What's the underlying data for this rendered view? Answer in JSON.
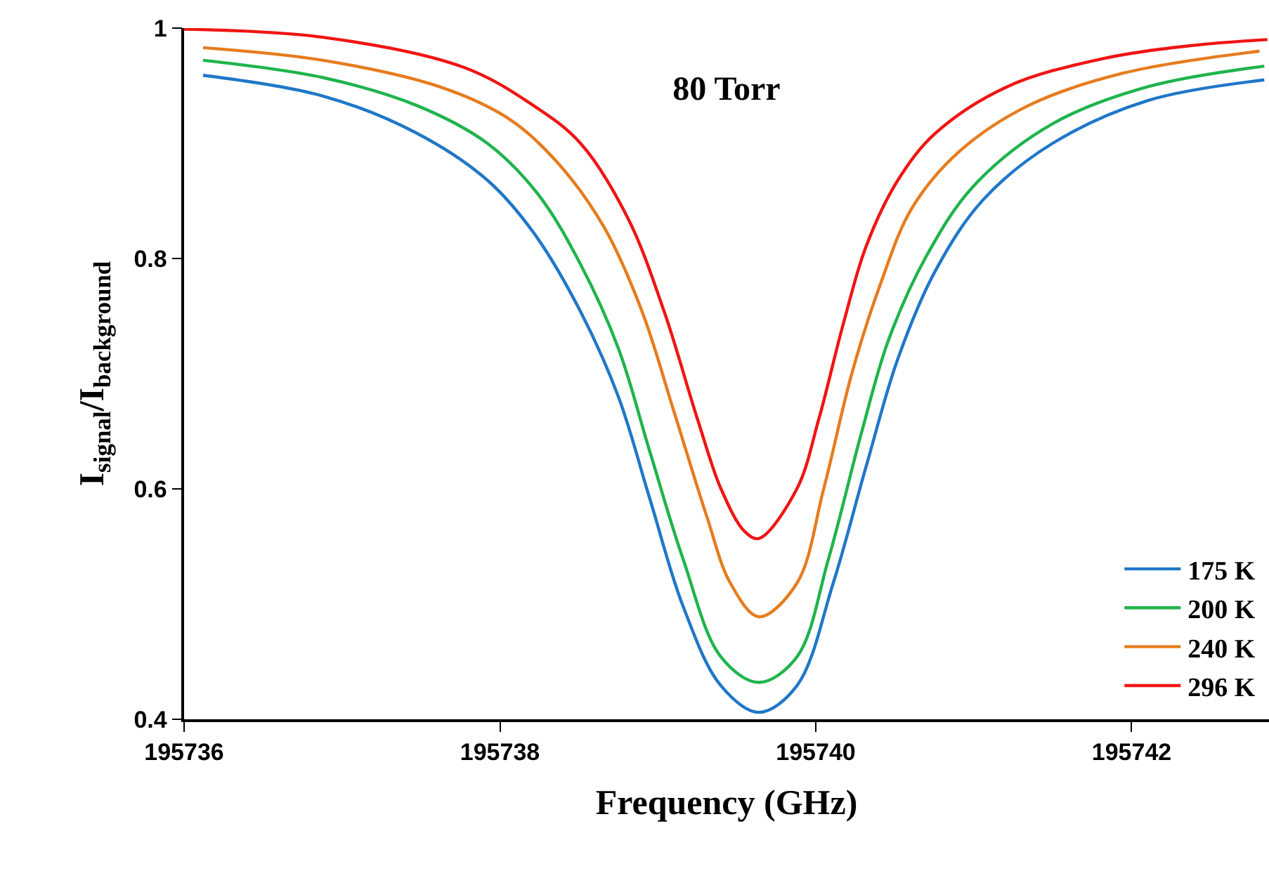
{
  "chart_data": {
    "type": "line",
    "title": "80 Torr",
    "xlabel": "Frequency (GHz)",
    "ylabel": "I$_{signal}$/I$_{background}$",
    "xlim": [
      195736,
      195742.87
    ],
    "xticks": [
      195736,
      195738,
      195740,
      195742
    ],
    "ylim": [
      0.4,
      1
    ],
    "yticks": [
      0.4,
      0.6,
      0.8,
      1
    ],
    "legend": "bottom right",
    "marker": "none",
    "line_style": "solid",
    "series": [
      {
        "name": "175 K",
        "color": "#1f77c8",
        "x": [
          195736.12,
          195736.88,
          195737.47,
          195737.92,
          195738.21,
          195738.51,
          195738.75,
          195738.95,
          195739.16,
          195739.4,
          195739.64,
          195739.88,
          195740.11,
          195740.32,
          195740.52,
          195740.76,
          195741.06,
          195741.5,
          195742.1,
          195742.84
        ],
        "values": [
          0.959,
          0.941,
          0.909,
          0.868,
          0.823,
          0.754,
          0.68,
          0.591,
          0.498,
          0.429,
          0.406,
          0.429,
          0.518,
          0.62,
          0.713,
          0.79,
          0.851,
          0.9,
          0.937,
          0.955
        ]
      },
      {
        "name": "200 K",
        "color": "#1fb44c",
        "x": [
          195736.12,
          195736.88,
          195737.47,
          195737.92,
          195738.24,
          195738.51,
          195738.75,
          195738.95,
          195739.16,
          195739.4,
          195739.64,
          195739.88,
          195740.08,
          195740.29,
          195740.46,
          195740.7,
          195741.0,
          195741.5,
          195742.1,
          195742.84
        ],
        "values": [
          0.972,
          0.957,
          0.933,
          0.9,
          0.856,
          0.795,
          0.722,
          0.632,
          0.539,
          0.454,
          0.432,
          0.454,
          0.539,
          0.649,
          0.729,
          0.802,
          0.863,
          0.917,
          0.949,
          0.967
        ]
      },
      {
        "name": "240 K",
        "color": "#e67c1e",
        "x": [
          195736.12,
          195736.88,
          195737.62,
          195738.06,
          195738.36,
          195738.66,
          195738.9,
          195739.1,
          195739.31,
          195739.46,
          195739.64,
          195739.88,
          195740.05,
          195740.23,
          195740.41,
          195740.61,
          195740.91,
          195741.35,
          195741.95,
          195742.81
        ],
        "values": [
          0.983,
          0.972,
          0.949,
          0.921,
          0.884,
          0.827,
          0.754,
          0.668,
          0.576,
          0.518,
          0.489,
          0.518,
          0.6,
          0.701,
          0.778,
          0.844,
          0.893,
          0.933,
          0.961,
          0.98
        ]
      },
      {
        "name": "296 K",
        "color": "#f01414",
        "x": [
          195736.0,
          195736.88,
          195737.77,
          195738.21,
          195738.51,
          195738.81,
          195739.04,
          195739.25,
          195739.4,
          195739.55,
          195739.64,
          195739.88,
          195740.02,
          195740.17,
          195740.32,
          195740.52,
          195740.76,
          195741.21,
          195741.8,
          195742.39,
          195742.86
        ],
        "values": [
          0.999,
          0.992,
          0.966,
          0.933,
          0.9,
          0.835,
          0.754,
          0.661,
          0.6,
          0.563,
          0.557,
          0.6,
          0.661,
          0.741,
          0.811,
          0.868,
          0.909,
          0.949,
          0.973,
          0.985,
          0.99
        ]
      }
    ]
  }
}
